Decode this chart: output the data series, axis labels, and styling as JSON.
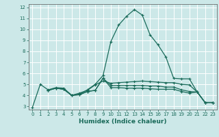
{
  "title": "",
  "xlabel": "Humidex (Indice chaleur)",
  "bg_color": "#cce8e8",
  "grid_color": "#ffffff",
  "line_color": "#1a6b5a",
  "xlim": [
    -0.5,
    23.5
  ],
  "ylim": [
    2.7,
    12.3
  ],
  "xticks": [
    0,
    1,
    2,
    3,
    4,
    5,
    6,
    7,
    8,
    9,
    10,
    11,
    12,
    13,
    14,
    15,
    16,
    17,
    18,
    19,
    20,
    21,
    22,
    23
  ],
  "yticks": [
    3,
    4,
    5,
    6,
    7,
    8,
    9,
    10,
    11,
    12
  ],
  "curve1_x": [
    0,
    1,
    2,
    3,
    4,
    5,
    6,
    7,
    8,
    9,
    10,
    11,
    12,
    13,
    14,
    15,
    16,
    17,
    18,
    19,
    20,
    21,
    22,
    23
  ],
  "curve1_y": [
    2.9,
    5.0,
    4.5,
    4.7,
    4.65,
    4.0,
    4.1,
    4.5,
    5.0,
    5.8,
    8.9,
    10.4,
    11.2,
    11.8,
    11.3,
    9.5,
    8.6,
    7.5,
    5.55,
    5.5,
    5.5,
    4.3,
    3.35,
    3.35
  ],
  "curve2_x": [
    2,
    3,
    4,
    5,
    6,
    7,
    8,
    9,
    10,
    11,
    12,
    13,
    14,
    15,
    16,
    17,
    18,
    19,
    20,
    21,
    22,
    23
  ],
  "curve2_y": [
    4.45,
    4.65,
    4.55,
    4.0,
    4.2,
    4.45,
    4.95,
    5.3,
    5.1,
    5.15,
    5.2,
    5.25,
    5.3,
    5.25,
    5.2,
    5.15,
    5.15,
    5.0,
    4.95,
    4.3,
    3.35,
    3.35
  ],
  "curve3_x": [
    2,
    3,
    4,
    5,
    6,
    7,
    8,
    9,
    10,
    11,
    12,
    13,
    14,
    15,
    16,
    17,
    18,
    19,
    20,
    21,
    22,
    23
  ],
  "curve3_y": [
    4.45,
    4.65,
    4.55,
    4.0,
    4.05,
    4.35,
    4.45,
    5.55,
    4.9,
    4.9,
    4.9,
    4.9,
    4.9,
    4.85,
    4.85,
    4.75,
    4.75,
    4.5,
    4.35,
    4.3,
    3.35,
    3.35
  ],
  "curve4_x": [
    2,
    3,
    4,
    5,
    6,
    7,
    8,
    9,
    10,
    11,
    12,
    13,
    14,
    15,
    16,
    17,
    18,
    19,
    20,
    21,
    22,
    23
  ],
  "curve4_y": [
    4.45,
    4.65,
    4.55,
    4.0,
    4.05,
    4.35,
    4.45,
    5.55,
    4.7,
    4.7,
    4.65,
    4.65,
    4.65,
    4.6,
    4.55,
    4.55,
    4.55,
    4.35,
    4.2,
    4.3,
    3.35,
    3.35
  ]
}
